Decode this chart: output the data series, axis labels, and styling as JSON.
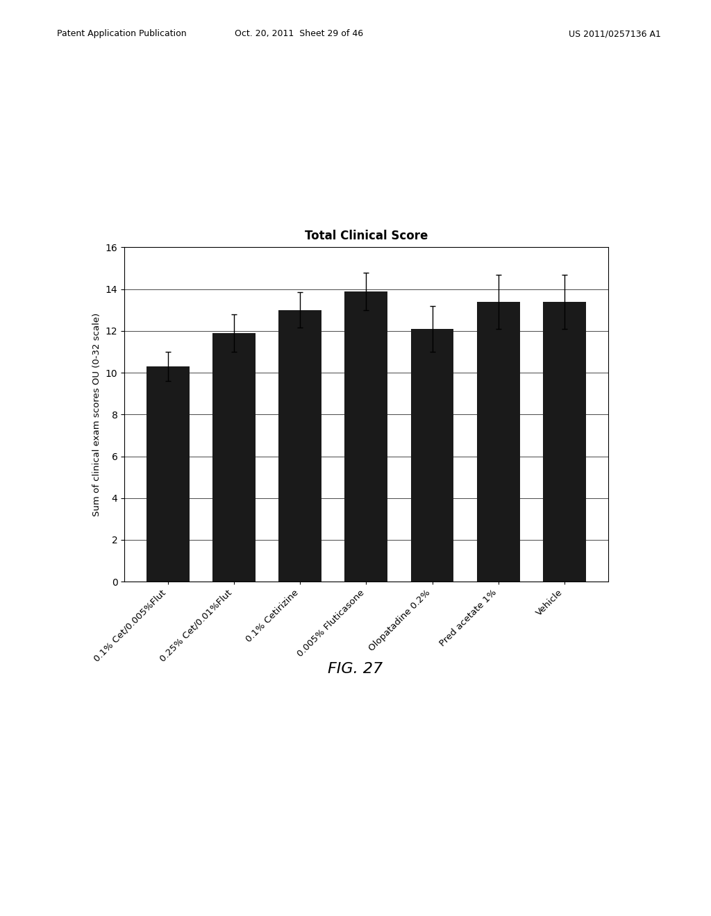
{
  "title": "Total Clinical Score",
  "ylabel": "Sum of clinical exam scores OU (0-32 scale)",
  "categories": [
    "0.1% Cet/0.005%Flut",
    "0.25% Cet/0.01%Flut",
    "0.1% Cetirizine",
    "0.005% Fluticasone",
    "Olopatadine 0.2%",
    "Pred acetate 1%",
    "Vehicle"
  ],
  "values": [
    10.3,
    11.9,
    13.0,
    13.9,
    12.1,
    13.4,
    13.4
  ],
  "errors": [
    0.7,
    0.9,
    0.85,
    0.9,
    1.1,
    1.3,
    1.3
  ],
  "bar_color": "#1a1a1a",
  "ylim": [
    0,
    16
  ],
  "yticks": [
    0,
    2,
    4,
    6,
    8,
    10,
    12,
    14,
    16
  ],
  "fig_caption": "FIG. 27",
  "header_left": "Patent Application Publication",
  "header_center": "Oct. 20, 2011  Sheet 29 of 46",
  "header_right": "US 2011/0257136 A1",
  "background_color": "#ffffff",
  "title_fontsize": 12,
  "label_fontsize": 9.5,
  "tick_fontsize": 10,
  "caption_fontsize": 16
}
